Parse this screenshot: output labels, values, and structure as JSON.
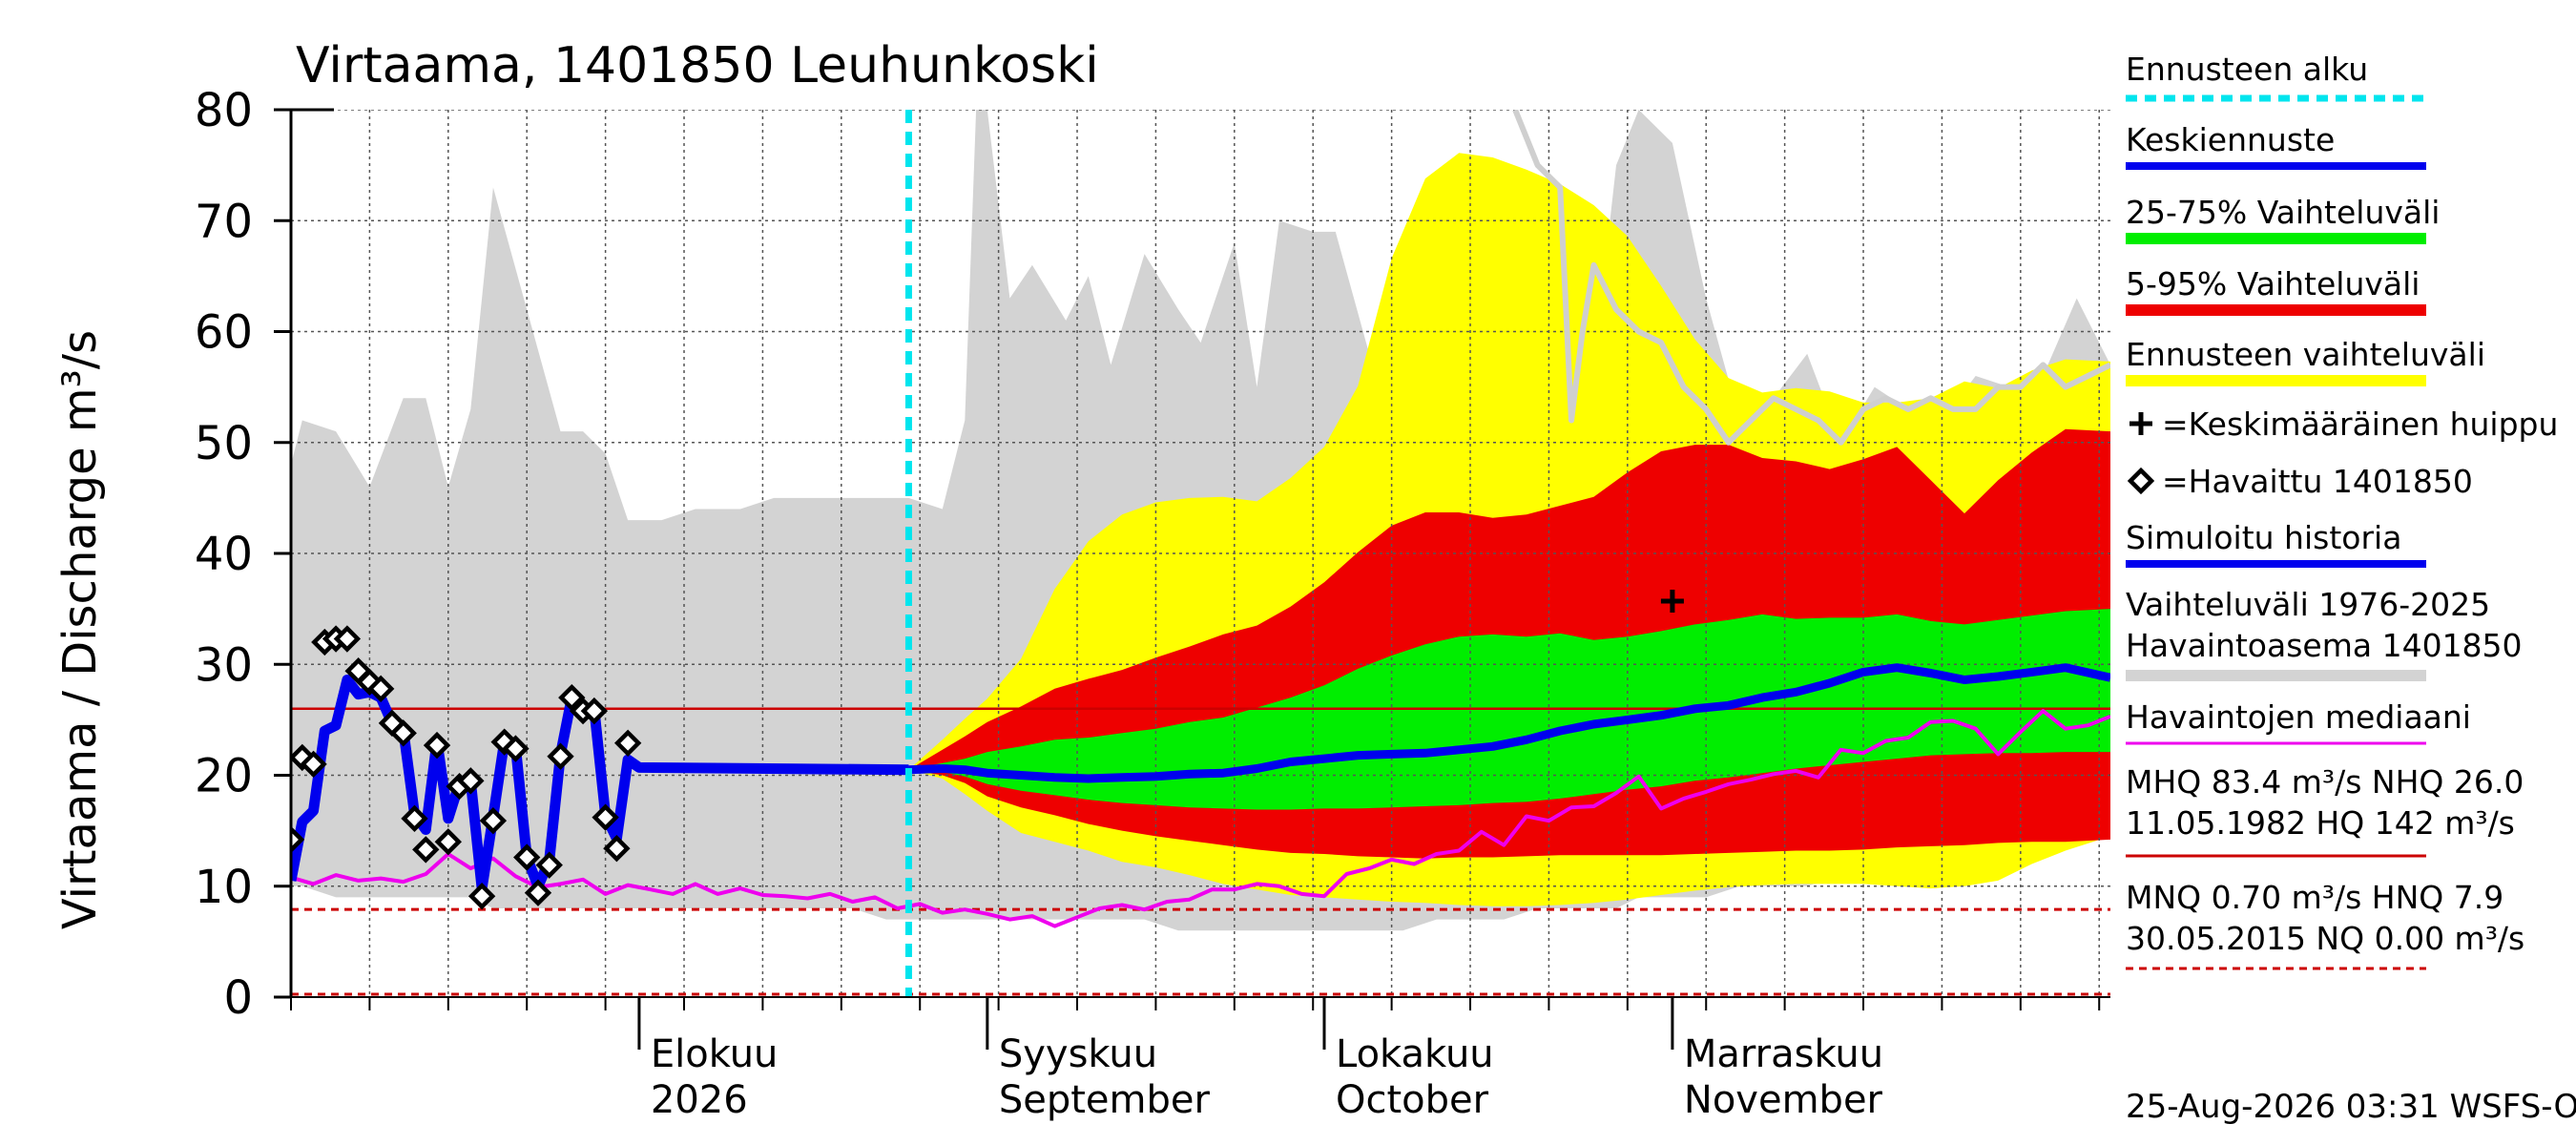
{
  "chart_data": {
    "type": "area",
    "title": "Virtaama, 1401850 Leuhunkoski",
    "ylabel": "Virtaama / Discharge    m³/s",
    "ylim": [
      0,
      80
    ],
    "y_ticks": [
      0,
      10,
      20,
      30,
      40,
      50,
      60,
      70,
      80
    ],
    "x_start": "2026-07-01",
    "x_end": "2026-12-10",
    "month_labels": [
      {
        "date": "2026-08-01",
        "fi": "Elokuu",
        "en": "2026"
      },
      {
        "date": "2026-09-01",
        "fi": "Syyskuu",
        "en": "September"
      },
      {
        "date": "2026-10-01",
        "fi": "Lokakuu",
        "en": "October"
      },
      {
        "date": "2026-11-01",
        "fi": "Marraskuu",
        "en": "November"
      }
    ],
    "forecast_start": "2026-08-25",
    "grid": true,
    "legend_position": "right",
    "legend": [
      {
        "label": "Ennusteen alku",
        "color": "#00e5ee",
        "style": "dashed"
      },
      {
        "label": "Keskiennuste",
        "color": "#0000ee",
        "style": "line"
      },
      {
        "label": "25-75% Vaihteluväli",
        "color": "#00ee00",
        "style": "band"
      },
      {
        "label": "5-95% Vaihteluväli",
        "color": "#ee0000",
        "style": "band"
      },
      {
        "label": "Ennusteen vaihteluväli",
        "color": "#ffff00",
        "style": "band"
      },
      {
        "label": "=Keskimääräinen huippu",
        "color": "#000000",
        "style": "cross"
      },
      {
        "label": "=Havaittu 1401850",
        "color": "#000000",
        "style": "diamond"
      },
      {
        "label": "Simuloitu historia",
        "color": "#0000ee",
        "style": "line"
      },
      {
        "label": "Vaihteluväli 1976-2025\nHavaintoasema 1401850",
        "color": "#d3d3d3",
        "style": "band"
      },
      {
        "label": "Havaintojen mediaani",
        "color": "#ee00ee",
        "style": "line"
      },
      {
        "label": "MHQ 83.4 m³/s NHQ 26.0\n11.05.1982 HQ  142 m³/s",
        "color": "#cc0000",
        "style": "line"
      },
      {
        "label": "MNQ 0.70 m³/s HNQ  7.9\n30.05.2015 NQ 0.00 m³/s",
        "color": "#cc0000",
        "style": "dotted"
      }
    ],
    "reference_lines": {
      "NHQ": 26.0,
      "HNQ": 7.9,
      "NQ": 0.0
    },
    "historical_band": {
      "x": [
        "2026-07-01",
        "2026-07-02",
        "2026-07-05",
        "2026-07-08",
        "2026-07-11",
        "2026-07-13",
        "2026-07-15",
        "2026-07-17",
        "2026-07-19",
        "2026-07-22",
        "2026-07-25",
        "2026-07-27",
        "2026-07-29",
        "2026-07-31",
        "2026-08-01",
        "2026-08-03",
        "2026-08-06",
        "2026-08-08",
        "2026-08-10",
        "2026-08-13",
        "2026-08-15",
        "2026-08-18",
        "2026-08-20",
        "2026-08-23",
        "2026-08-25",
        "2026-08-28",
        "2026-08-30",
        "2026-08-31",
        "2026-09-01",
        "2026-09-03",
        "2026-09-05",
        "2026-09-08",
        "2026-09-10",
        "2026-09-12",
        "2026-09-15",
        "2026-09-18",
        "2026-09-20",
        "2026-09-23",
        "2026-09-25",
        "2026-09-27",
        "2026-09-30",
        "2026-10-02",
        "2026-10-05",
        "2026-10-08",
        "2026-10-11",
        "2026-10-14",
        "2026-10-17",
        "2026-10-20",
        "2026-10-22",
        "2026-10-25",
        "2026-10-27",
        "2026-10-29",
        "2026-11-01",
        "2026-11-04",
        "2026-11-07",
        "2026-11-10",
        "2026-11-13",
        "2026-11-16",
        "2026-11-19",
        "2026-11-22",
        "2026-11-25",
        "2026-11-28",
        "2026-12-01",
        "2026-12-04",
        "2026-12-07",
        "2026-12-10"
      ],
      "max": [
        48,
        52,
        51,
        46,
        54,
        54,
        46,
        53,
        73,
        62,
        51,
        51,
        49,
        43,
        43,
        43,
        44,
        44,
        44,
        45,
        45,
        45,
        45,
        45,
        45,
        44,
        52,
        80,
        80,
        63,
        66,
        61,
        65,
        57,
        67,
        62,
        59,
        68,
        55,
        70,
        69,
        69,
        58,
        66,
        62,
        68,
        65,
        68,
        61,
        57,
        75,
        80,
        77,
        63,
        52,
        54,
        58,
        50,
        55,
        53,
        52,
        56,
        55,
        56,
        63,
        57
      ],
      "min": [
        10,
        10,
        9,
        9,
        9,
        9,
        9,
        9,
        8,
        8,
        8,
        8,
        8,
        8,
        8,
        8,
        8,
        8,
        8,
        8,
        8,
        8,
        8,
        7,
        7,
        7,
        7,
        7,
        7,
        7,
        7,
        7,
        7,
        7,
        7,
        6,
        6,
        6,
        6,
        6,
        6,
        6,
        6,
        6,
        7,
        7,
        7,
        8,
        8,
        8,
        8,
        9,
        9,
        9,
        10,
        10,
        10,
        11,
        11,
        11,
        12,
        12,
        13,
        13,
        14,
        15
      ]
    },
    "forecast_bands": {
      "x": [
        "2026-08-25",
        "2026-08-28",
        "2026-08-30",
        "2026-09-01",
        "2026-09-04",
        "2026-09-07",
        "2026-09-10",
        "2026-09-13",
        "2026-09-16",
        "2026-09-19",
        "2026-09-22",
        "2026-09-25",
        "2026-09-28",
        "2026-10-01",
        "2026-10-04",
        "2026-10-07",
        "2026-10-10",
        "2026-10-13",
        "2026-10-16",
        "2026-10-19",
        "2026-10-22",
        "2026-10-25",
        "2026-10-28",
        "2026-10-31",
        "2026-11-03",
        "2026-11-06",
        "2026-11-09",
        "2026-11-12",
        "2026-11-15",
        "2026-11-18",
        "2026-11-21",
        "2026-11-24",
        "2026-11-27",
        "2026-11-30",
        "2026-12-03",
        "2026-12-06",
        "2026-12-10"
      ],
      "p0": [
        20.5,
        19.7,
        18.3,
        16.8,
        14.8,
        14,
        13.2,
        12.2,
        11.7,
        11,
        10.2,
        9.7,
        9.2,
        9.0,
        8.8,
        8.6,
        8.5,
        8.3,
        8.2,
        8.2,
        8.3,
        8.5,
        8.8,
        9.2,
        9.6,
        9.9,
        10.1,
        10.2,
        10.2,
        10.2,
        10.0,
        9.8,
        10.0,
        10.5,
        12,
        13.2,
        14.5
      ],
      "p5": [
        20.5,
        20,
        19.3,
        18.1,
        17.1,
        16.4,
        15.6,
        15,
        14.5,
        14.1,
        13.7,
        13.3,
        13,
        12.9,
        12.7,
        12.6,
        12.5,
        12.6,
        12.6,
        12.7,
        12.8,
        12.8,
        12.8,
        12.8,
        12.9,
        13,
        13.1,
        13.2,
        13.2,
        13.3,
        13.5,
        13.6,
        13.7,
        13.9,
        14.0,
        14.0,
        14.2
      ],
      "p25": [
        20.5,
        20.3,
        19.9,
        19.2,
        18.6,
        18.2,
        17.8,
        17.5,
        17.3,
        17.1,
        17,
        16.9,
        16.9,
        17,
        17,
        17.1,
        17.2,
        17.3,
        17.5,
        17.6,
        17.9,
        18.3,
        18.7,
        19,
        19.5,
        19.8,
        20.2,
        20.6,
        20.9,
        21.2,
        21.5,
        21.8,
        21.9,
        22,
        22,
        22.1,
        22.1
      ],
      "p50": [
        20.5,
        20.6,
        20.5,
        20.2,
        20.0,
        19.8,
        19.7,
        19.8,
        19.9,
        20.1,
        20.2,
        20.6,
        21.2,
        21.5,
        21.8,
        21.9,
        22.0,
        22.3,
        22.6,
        23.2,
        24,
        24.6,
        25,
        25.4,
        26,
        26.3,
        27,
        27.5,
        28.3,
        29.3,
        29.7,
        29.2,
        28.6,
        28.9,
        29.3,
        29.7,
        28.8
      ],
      "p75": [
        20.5,
        21.1,
        21.5,
        22.1,
        22.6,
        23.2,
        23.4,
        23.8,
        24.2,
        24.8,
        25.2,
        26.1,
        27,
        28.1,
        29.6,
        30.8,
        31.8,
        32.5,
        32.7,
        32.5,
        32.8,
        32.2,
        32.5,
        33,
        33.6,
        34,
        34.5,
        34.1,
        34.2,
        34.2,
        34.5,
        33.9,
        33.6,
        34,
        34.4,
        34.8,
        35
      ],
      "p95": [
        20.5,
        22.3,
        23.5,
        24.8,
        26.2,
        27.8,
        28.7,
        29.5,
        30.6,
        31.6,
        32.7,
        33.5,
        35.2,
        37.4,
        40.1,
        42.5,
        43.7,
        43.7,
        43.2,
        43.5,
        44.3,
        45.1,
        47.3,
        49.2,
        49.8,
        49.8,
        48.6,
        48.3,
        47.6,
        48.5,
        49.6,
        46.6,
        43.6,
        46.6,
        49.1,
        51.2,
        51
      ],
      "p100": [
        20.5,
        23.2,
        25.1,
        26.9,
        30.5,
        36.8,
        41.1,
        43.5,
        44.6,
        45,
        45.1,
        44.7,
        46.8,
        49.6,
        55.1,
        66.6,
        73.8,
        76.1,
        75.7,
        74.6,
        73.3,
        71.4,
        68.6,
        64.1,
        59.3,
        55.8,
        54.5,
        54.9,
        54.6,
        53.6,
        53.6,
        54,
        55.5,
        54.9,
        56.5,
        57.5,
        57.3
      ]
    },
    "observed": {
      "x": [
        "2026-07-01",
        "2026-07-02",
        "2026-07-03",
        "2026-07-04",
        "2026-07-05",
        "2026-07-06",
        "2026-07-07",
        "2026-07-08",
        "2026-07-09",
        "2026-07-10",
        "2026-07-11",
        "2026-07-12",
        "2026-07-13",
        "2026-07-14",
        "2026-07-15",
        "2026-07-16",
        "2026-07-17",
        "2026-07-18",
        "2026-07-19",
        "2026-07-20",
        "2026-07-21",
        "2026-07-22",
        "2026-07-23",
        "2026-07-24",
        "2026-07-25",
        "2026-07-26",
        "2026-07-27",
        "2026-07-28",
        "2026-07-29",
        "2026-07-30",
        "2026-07-31",
        "2026-08-01",
        "2026-08-02",
        "2026-08-03",
        "2026-08-04",
        "2026-08-05",
        "2026-08-06",
        "2026-08-07",
        "2026-08-08",
        "2026-08-09"
      ],
      "values": [
        14.2,
        21.6,
        21.0,
        32.0,
        32.3,
        32.3,
        29.4,
        28.4,
        27.8,
        24.7,
        23.8,
        16.1,
        13.3,
        22.7,
        14.0,
        19.0,
        19.5,
        9.1,
        15.9,
        23.0,
        22.4,
        12.6,
        9.4,
        11.9,
        21.7,
        27.0,
        25.8,
        25.8,
        16.2,
        13.4,
        22.9,
        null,
        null,
        null,
        null,
        null,
        null,
        null,
        null,
        null
      ]
    },
    "simulated": {
      "x": [
        "2026-07-01",
        "2026-07-02",
        "2026-07-03",
        "2026-07-04",
        "2026-07-05",
        "2026-07-06",
        "2026-07-07",
        "2026-07-08",
        "2026-07-09",
        "2026-07-10",
        "2026-07-11",
        "2026-07-12",
        "2026-07-13",
        "2026-07-14",
        "2026-07-15",
        "2026-07-16",
        "2026-07-17",
        "2026-07-18",
        "2026-07-19",
        "2026-07-20",
        "2026-07-21",
        "2026-07-22",
        "2026-07-23",
        "2026-07-24",
        "2026-07-25",
        "2026-07-26",
        "2026-07-27",
        "2026-07-28",
        "2026-07-29",
        "2026-07-30",
        "2026-07-31",
        "2026-08-01",
        "2026-08-25"
      ],
      "values": [
        10.5,
        15.8,
        16.8,
        24,
        24.5,
        28.6,
        27.3,
        27.5,
        27,
        24.7,
        24.1,
        16.5,
        15.1,
        23.1,
        16.1,
        19.3,
        19.5,
        9.8,
        16.3,
        23.1,
        22.6,
        12.6,
        10,
        12.3,
        21.9,
        27.0,
        26.0,
        26.0,
        16.4,
        14.3,
        21.4,
        20.7,
        20.5
      ]
    },
    "median": {
      "x": [
        "2026-07-01",
        "2026-07-03",
        "2026-07-05",
        "2026-07-07",
        "2026-07-09",
        "2026-07-11",
        "2026-07-13",
        "2026-07-15",
        "2026-07-17",
        "2026-07-19",
        "2026-07-21",
        "2026-07-23",
        "2026-07-25",
        "2026-07-27",
        "2026-07-29",
        "2026-07-31",
        "2026-08-02",
        "2026-08-04",
        "2026-08-06",
        "2026-08-08",
        "2026-08-10",
        "2026-08-12",
        "2026-08-14",
        "2026-08-16",
        "2026-08-18",
        "2026-08-20",
        "2026-08-22",
        "2026-08-24",
        "2026-08-26",
        "2026-08-28",
        "2026-08-30",
        "2026-09-01",
        "2026-09-03",
        "2026-09-05",
        "2026-09-07",
        "2026-09-09",
        "2026-09-11",
        "2026-09-13",
        "2026-09-15",
        "2026-09-17",
        "2026-09-19",
        "2026-09-21",
        "2026-09-23",
        "2026-09-25",
        "2026-09-27",
        "2026-09-29",
        "2026-10-01",
        "2026-10-03",
        "2026-10-05",
        "2026-10-07",
        "2026-10-09",
        "2026-10-11",
        "2026-10-13",
        "2026-10-15",
        "2026-10-17",
        "2026-10-19",
        "2026-10-21",
        "2026-10-23",
        "2026-10-25",
        "2026-10-27",
        "2026-10-29",
        "2026-10-31",
        "2026-11-02",
        "2026-11-04",
        "2026-11-06",
        "2026-11-08",
        "2026-11-10",
        "2026-11-12",
        "2026-11-14",
        "2026-11-16",
        "2026-11-18",
        "2026-11-20",
        "2026-11-22",
        "2026-11-24",
        "2026-11-26",
        "2026-11-28",
        "2026-11-30",
        "2026-12-02",
        "2026-12-04",
        "2026-12-06",
        "2026-12-08",
        "2026-12-10"
      ],
      "values": [
        10.8,
        10.2,
        11,
        10.5,
        10.7,
        10.4,
        11.1,
        12.9,
        11.6,
        12.5,
        10.9,
        9.9,
        10.2,
        10.6,
        9.3,
        10.1,
        9.7,
        9.3,
        10.2,
        9.3,
        9.8,
        9.2,
        9.1,
        8.9,
        9.3,
        8.6,
        9.0,
        8.0,
        8.4,
        7.6,
        7.9,
        7.5,
        7.0,
        7.3,
        6.4,
        7.2,
        8.0,
        8.3,
        7.9,
        8.6,
        8.8,
        9.7,
        9.7,
        10.2,
        10.0,
        9.3,
        9.1,
        11.1,
        11.6,
        12.4,
        12.0,
        12.9,
        13.2,
        14.9,
        13.7,
        16.3,
        15.9,
        17.1,
        17.2,
        18.4,
        19.9,
        17.0,
        17.9,
        18.5,
        19.2,
        19.6,
        20.1,
        20.4,
        19.8,
        22.3,
        22.0,
        23.1,
        23.4,
        24.8,
        24.9,
        24.2,
        21.9,
        23.9,
        25.8,
        24.2,
        24.5,
        25.3
      ]
    },
    "mean_peak": {
      "x": "2026-11-01",
      "y": 35.7
    },
    "ensemble_grey_line": {
      "x": [
        "2026-10-18",
        "2026-10-20",
        "2026-10-22",
        "2026-10-23",
        "2026-10-24",
        "2026-10-25",
        "2026-10-27",
        "2026-10-29",
        "2026-10-31",
        "2026-11-02",
        "2026-11-04",
        "2026-11-06",
        "2026-11-08",
        "2026-11-10",
        "2026-11-12",
        "2026-11-14",
        "2026-11-16",
        "2026-11-18",
        "2026-11-20",
        "2026-11-22",
        "2026-11-24",
        "2026-11-26",
        "2026-11-28",
        "2026-11-30",
        "2026-12-02",
        "2026-12-04",
        "2026-12-06",
        "2026-12-08",
        "2026-12-10"
      ],
      "values": [
        80,
        75,
        73,
        52,
        60,
        66,
        62,
        60,
        59,
        55,
        53,
        50,
        52,
        54,
        53,
        52,
        50,
        53,
        54,
        53,
        54,
        53,
        53,
        55,
        55,
        57,
        55,
        56,
        57
      ]
    },
    "footer": "25-Aug-2026 03:31 WSFS-O"
  }
}
